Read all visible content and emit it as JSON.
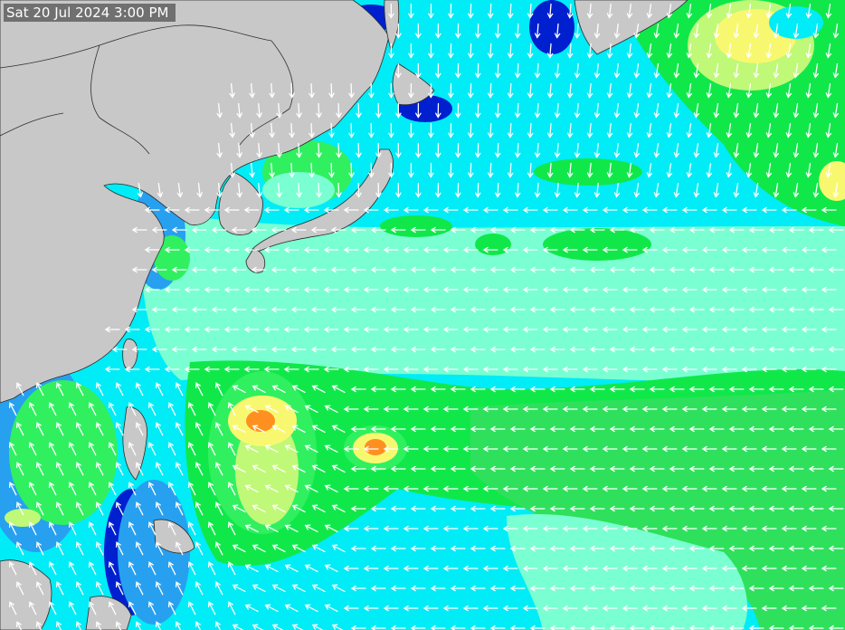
{
  "timestamp": "Sat 20 Jul 2024 3:00 PM",
  "colors": {
    "land": "#c8c8c8",
    "border": "#404040",
    "ocean_cyan": "#00ecf6",
    "ocean_light": "#7affd2",
    "band_green": "#10e84a",
    "band_light_green": "#30f060",
    "band_yellow_green": "#c0f878",
    "band_yellow": "#f8f870",
    "band_orange": "#ff9020",
    "band_blue": "#28a0f0",
    "band_dark_blue": "#0020d0",
    "arrows": "#ffffff"
  },
  "layers": {
    "land_mask": "land",
    "swell_shading": "wave-height",
    "wind_arrows": "direction"
  }
}
